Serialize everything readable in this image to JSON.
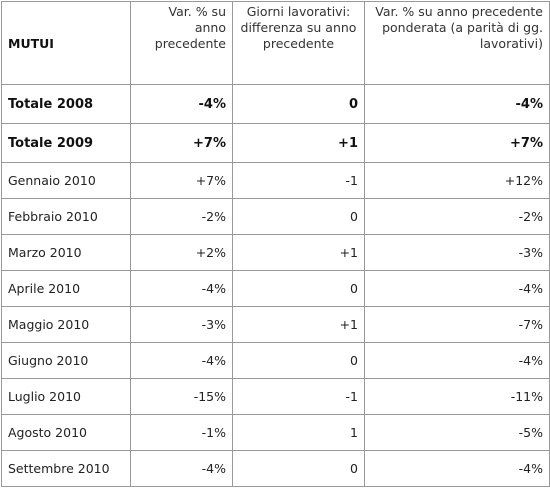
{
  "table": {
    "header": [
      "MUTUI",
      "Var. % su anno precedente",
      "Giorni lavorativi: differenza su anno precedente",
      "Var. % su anno precedente ponderata (a parità di gg. lavorativi)"
    ],
    "rows": [
      [
        "Totale 2008",
        "-4%",
        "0",
        "-4%"
      ],
      [
        "Totale 2009",
        "+7%",
        "+1",
        "+7%"
      ],
      [
        "Gennaio 2010",
        "+7%",
        "-1",
        "+12%"
      ],
      [
        "Febbraio 2010",
        "-2%",
        "0",
        "-2%"
      ],
      [
        "Marzo 2010",
        "+2%",
        "+1",
        "-3%"
      ],
      [
        "Aprile 2010",
        "-4%",
        "0",
        "-4%"
      ],
      [
        "Maggio 2010",
        "-3%",
        "+1",
        "-7%"
      ],
      [
        "Giugno 2010",
        "-4%",
        "0",
        "-4%"
      ],
      [
        "Luglio 2010",
        "-15%",
        "-1",
        "-11%"
      ],
      [
        "Agosto 2010",
        "-1%",
        "1",
        "-5%"
      ],
      [
        "Settembre 2010",
        "-4%",
        "0",
        "-4%"
      ]
    ]
  }
}
